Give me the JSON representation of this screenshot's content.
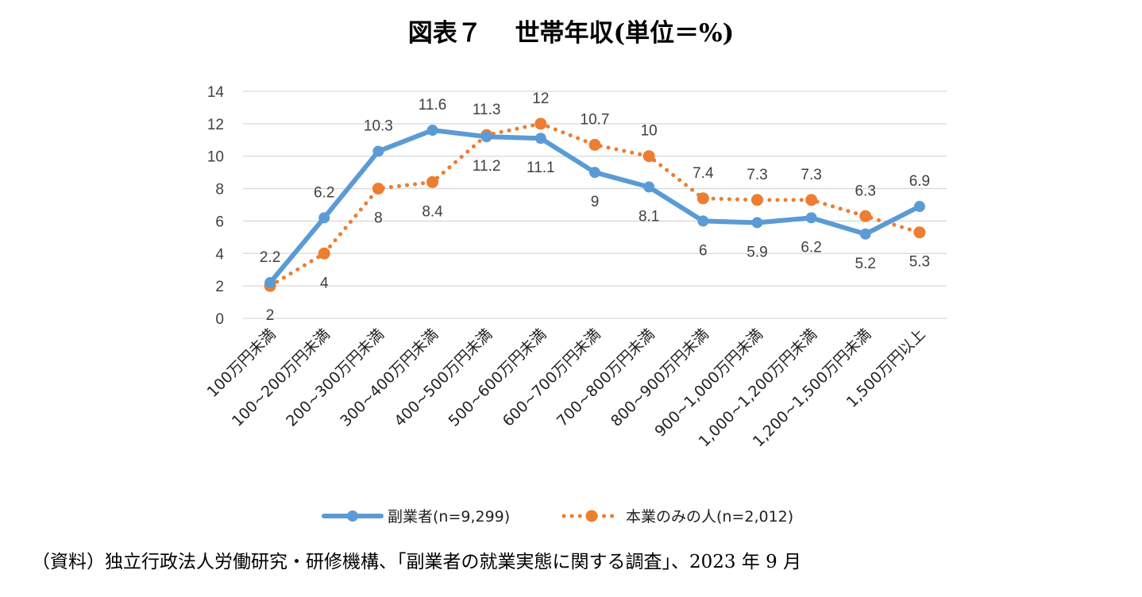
{
  "title": "図表７　 世帯年収(単位＝%)",
  "source": "（資料）独立行政法人労働研究・研修機構、「副業者の就業実態に関する調査」、2023 年 9 月",
  "chart_data": {
    "type": "line",
    "categories": [
      "100万円未満",
      "100~200万円未満",
      "200~300万円未満",
      "300~400万円未満",
      "400~500万円未満",
      "500~600万円未満",
      "600~700万円未満",
      "700~800万円未満",
      "800~900万円未満",
      "900~1,000万円未満",
      "1,000~1,200万円未満",
      "1,200~1,500万円未満",
      "1,500万円以上"
    ],
    "series": [
      {
        "name": "副業者(n=9,299)",
        "values": [
          2.2,
          6.2,
          10.3,
          11.6,
          11.2,
          11.1,
          9,
          8.1,
          6,
          5.9,
          6.2,
          5.2,
          6.9
        ],
        "color": "#5b9bd5",
        "style": "solid"
      },
      {
        "name": "本業のみの人(n=2,012)",
        "values": [
          2,
          4,
          8,
          8.4,
          11.3,
          12,
          10.7,
          10,
          7.4,
          7.3,
          7.3,
          6.3,
          5.3
        ],
        "color": "#ed7d31",
        "style": "dotted"
      }
    ],
    "ylim": [
      0,
      14
    ],
    "yticks": [
      0,
      2,
      4,
      6,
      8,
      10,
      12,
      14
    ],
    "grid": true,
    "legend": "bottom"
  }
}
